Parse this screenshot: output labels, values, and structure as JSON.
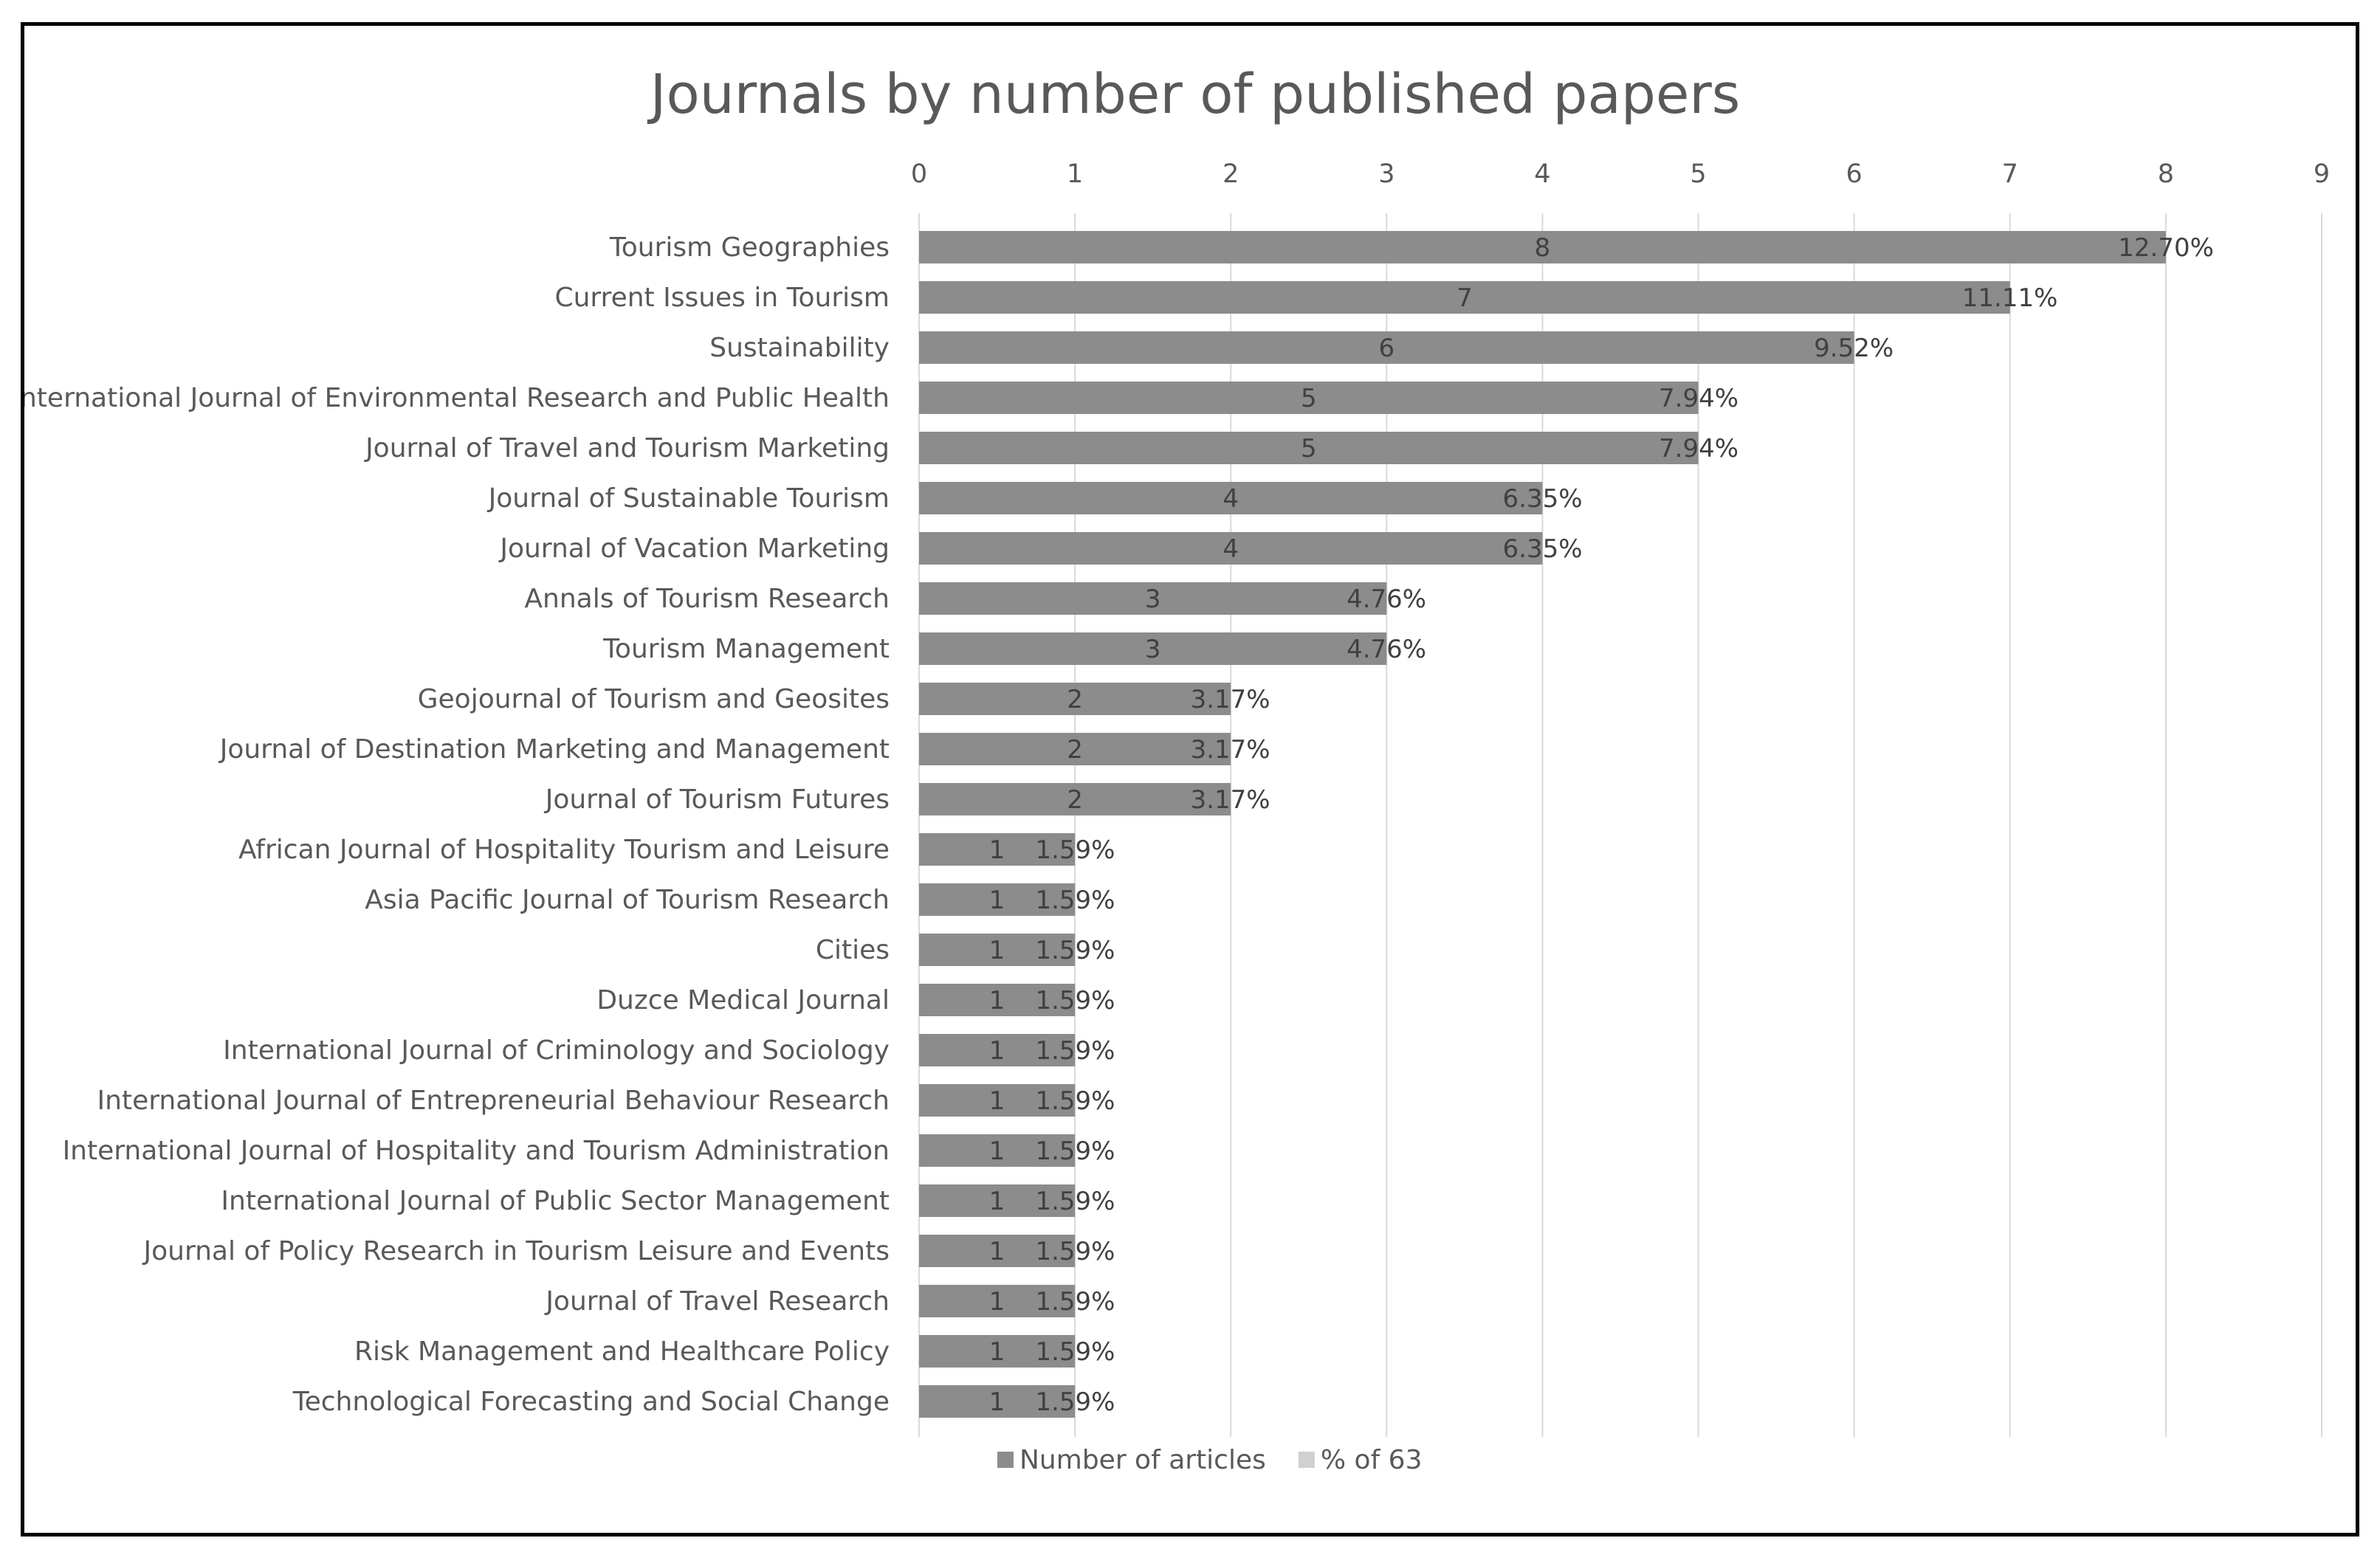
{
  "chart_data": {
    "type": "bar",
    "orientation": "horizontal",
    "title": "Journals by number of published papers",
    "xlim": [
      0,
      9
    ],
    "x_ticks": [
      "0",
      "1",
      "2",
      "3",
      "4",
      "5",
      "6",
      "7",
      "8",
      "9"
    ],
    "grid": true,
    "legend_position": "bottom",
    "categories": [
      "Tourism Geographies",
      "Current Issues in Tourism",
      "Sustainability",
      "International Journal of Environmental Research and Public Health",
      "Journal of Travel and Tourism Marketing",
      "Journal of Sustainable Tourism",
      "Journal of Vacation Marketing",
      "Annals of Tourism Research",
      "Tourism Management",
      "Geojournal of Tourism and Geosites",
      "Journal of Destination Marketing and Management",
      "Journal of Tourism Futures",
      "African Journal of Hospitality Tourism and Leisure",
      "Asia Pacific Journal of Tourism Research",
      "Cities",
      "Duzce Medical Journal",
      "International Journal of Criminology and Sociology",
      "International Journal of Entrepreneurial Behaviour Research",
      "International Journal of Hospitality and Tourism Administration",
      "International Journal of Public Sector Management",
      "Journal of Policy Research in Tourism Leisure and Events",
      "Journal of Travel Research",
      "Risk Management and Healthcare Policy",
      "Technological Forecasting and Social Change"
    ],
    "series": [
      {
        "name": "Number of articles",
        "color": "#8c8c8c",
        "values": [
          8,
          7,
          6,
          5,
          5,
          4,
          4,
          3,
          3,
          2,
          2,
          2,
          1,
          1,
          1,
          1,
          1,
          1,
          1,
          1,
          1,
          1,
          1,
          1
        ],
        "labels": [
          "8",
          "7",
          "6",
          "5",
          "5",
          "4",
          "4",
          "3",
          "3",
          "2",
          "2",
          "2",
          "1",
          "1",
          "1",
          "1",
          "1",
          "1",
          "1",
          "1",
          "1",
          "1",
          "1",
          "1"
        ]
      },
      {
        "name": "% of 63",
        "color": "#d0d0d0",
        "values": [
          0.127,
          0.1111,
          0.0952,
          0.0794,
          0.0794,
          0.0635,
          0.0635,
          0.0476,
          0.0476,
          0.0317,
          0.0317,
          0.0317,
          0.0159,
          0.0159,
          0.0159,
          0.0159,
          0.0159,
          0.0159,
          0.0159,
          0.0159,
          0.0159,
          0.0159,
          0.0159,
          0.0159
        ],
        "labels": [
          "12.70%",
          "11.11%",
          "9.52%",
          "7.94%",
          "7.94%",
          "6.35%",
          "6.35%",
          "4.76%",
          "4.76%",
          "3.17%",
          "3.17%",
          "3.17%",
          "1.59%",
          "1.59%",
          "1.59%",
          "1.59%",
          "1.59%",
          "1.59%",
          "1.59%",
          "1.59%",
          "1.59%",
          "1.59%",
          "1.59%",
          "1.59%"
        ]
      }
    ],
    "colors": {
      "grid": "#d9d9d9",
      "text": "#595959",
      "label": "#404040"
    }
  }
}
